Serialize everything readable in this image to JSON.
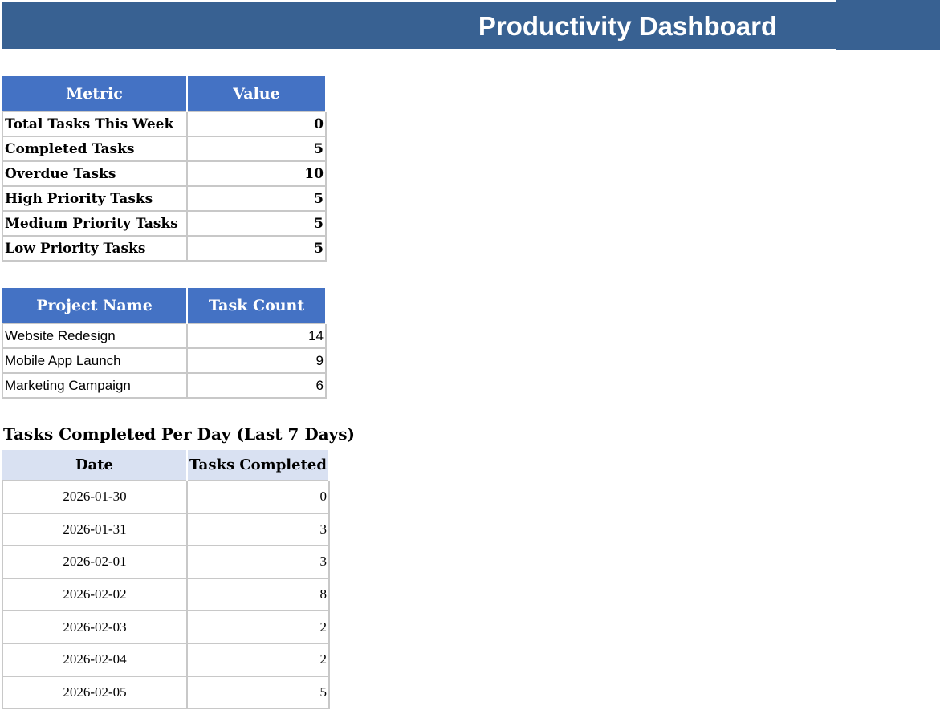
{
  "header": {
    "title": "Productivity Dashboard",
    "color": "#386192"
  },
  "metrics": {
    "columns": [
      "Metric",
      "Value"
    ],
    "rows": [
      {
        "label": "Total Tasks This Week",
        "value": "0"
      },
      {
        "label": "Completed Tasks",
        "value": "5"
      },
      {
        "label": "Overdue Tasks",
        "value": "10"
      },
      {
        "label": "High Priority Tasks",
        "value": "5"
      },
      {
        "label": "Medium Priority Tasks",
        "value": "5"
      },
      {
        "label": "Low Priority Tasks",
        "value": "5"
      }
    ]
  },
  "projects": {
    "columns": [
      "Project Name",
      "Task Count"
    ],
    "rows": [
      {
        "name": "Website Redesign",
        "count": "14"
      },
      {
        "name": "Mobile App Launch",
        "count": "9"
      },
      {
        "name": "Marketing Campaign",
        "count": "6"
      }
    ]
  },
  "daily": {
    "title": "Tasks Completed Per Day (Last 7 Days)",
    "columns": [
      "Date",
      "Tasks Completed"
    ],
    "rows": [
      {
        "date": "2026-01-30",
        "count": "0"
      },
      {
        "date": "2026-01-31",
        "count": "3"
      },
      {
        "date": "2026-02-01",
        "count": "3"
      },
      {
        "date": "2026-02-02",
        "count": "8"
      },
      {
        "date": "2026-02-03",
        "count": "2"
      },
      {
        "date": "2026-02-04",
        "count": "2"
      },
      {
        "date": "2026-02-05",
        "count": "5"
      }
    ]
  }
}
